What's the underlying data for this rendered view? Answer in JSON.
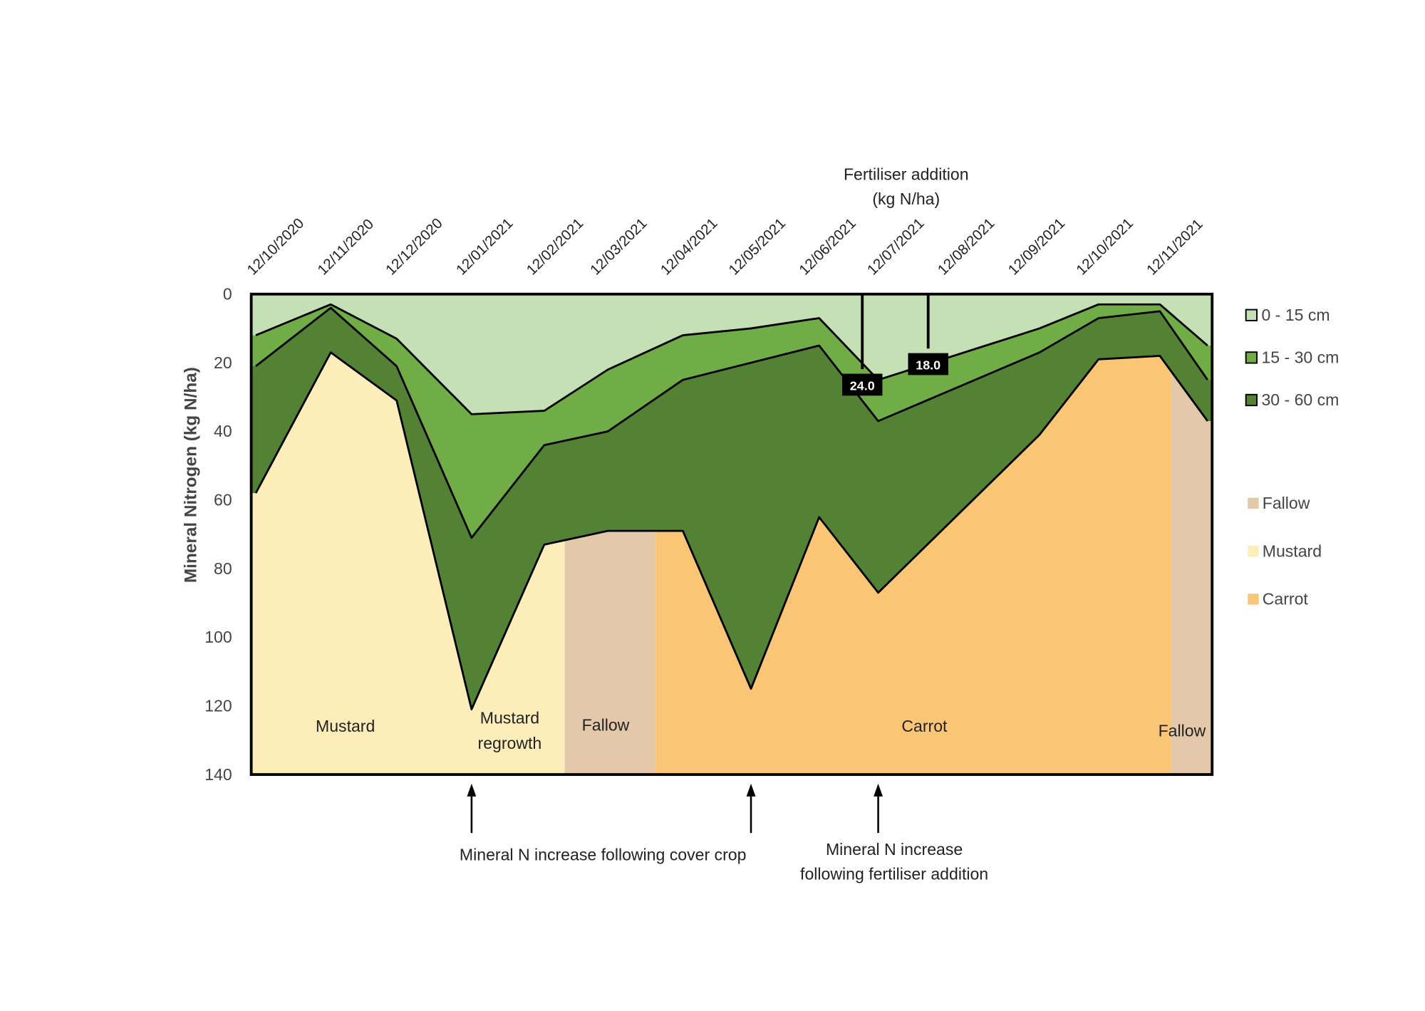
{
  "chart_data": {
    "type": "area",
    "stacked": true,
    "inverted_y": true,
    "title": "",
    "ylabel": "Mineral Nitrogen (kg N/ha)",
    "xlabel": "",
    "ylim": [
      0,
      140
    ],
    "yticks": [
      "0",
      "20",
      "40",
      "60",
      "80",
      "100",
      "120",
      "140"
    ],
    "xticks": [
      "12/10/2020",
      "12/11/2020",
      "12/12/2020",
      "12/01/2021",
      "12/02/2021",
      "12/03/2021",
      "12/04/2021",
      "12/05/2021",
      "12/06/2021",
      "12/07/2021",
      "12/08/2021",
      "12/09/2021",
      "12/10/2021",
      "12/11/2021"
    ],
    "xtick_dates": [
      "2020-10-12",
      "2020-11-12",
      "2020-12-12",
      "2021-01-12",
      "2021-02-12",
      "2021-03-12",
      "2021-04-12",
      "2021-05-12",
      "2021-06-12",
      "2021-07-12",
      "2021-08-12",
      "2021-09-12",
      "2021-10-12",
      "2021-11-12"
    ],
    "xlim": [
      "2020-10-10",
      "2021-12-07"
    ],
    "x": [
      "2020-10-12",
      "2020-11-14",
      "2020-12-13",
      "2021-01-15",
      "2021-02-16",
      "2021-03-16",
      "2021-04-18",
      "2021-05-18",
      "2021-06-17",
      "2021-07-13",
      "2021-09-22",
      "2021-10-18",
      "2021-11-14",
      "2021-12-05"
    ],
    "series": [
      {
        "name": "0 - 15 cm",
        "color": "#c5e0b4",
        "cumulative": [
          12,
          3,
          13,
          35,
          34,
          22,
          12,
          10,
          7,
          25,
          10,
          3,
          3,
          15
        ]
      },
      {
        "name": "15 - 30 cm",
        "color": "#70ad47",
        "cumulative": [
          21,
          4,
          21,
          71,
          44,
          40,
          25,
          20,
          15,
          37,
          17,
          7,
          5,
          25
        ]
      },
      {
        "name": "30 - 60 cm",
        "color": "#548235",
        "cumulative": [
          58,
          17,
          31,
          121,
          73,
          69,
          69,
          115,
          65,
          87,
          41,
          19,
          18,
          37
        ]
      }
    ],
    "crop_periods": [
      {
        "name": "Mustard",
        "label": "Mustard",
        "start": "2020-10-10",
        "end": "2021-02-25",
        "color": "#fdedb9"
      },
      {
        "name": "Fallow",
        "label": "Fallow",
        "start": "2021-02-25",
        "end": "2021-04-06",
        "color": "#e3c9aa"
      },
      {
        "name": "Carrot",
        "label": "Carrot",
        "start": "2021-04-06",
        "end": "2021-11-19",
        "color": "#fbc576"
      },
      {
        "name": "Fallow",
        "label": "Fallow",
        "start": "2021-11-19",
        "end": "2021-12-07",
        "color": "#e3c9aa"
      }
    ],
    "mustard_regrowth_label": [
      "Mustard",
      "regrowth"
    ],
    "fertiliser": {
      "title": [
        "Fertiliser addition",
        "(kg N/ha)"
      ],
      "events": [
        {
          "date": "2021-07-06",
          "value": "24.0",
          "depth": 24
        },
        {
          "date": "2021-08-04",
          "value": "18.0",
          "depth": 18
        }
      ]
    },
    "annotations": [
      {
        "date": "2021-01-15",
        "text": [
          "Mineral N increase following cover crop"
        ]
      },
      {
        "date": "2021-05-18",
        "text": []
      },
      {
        "date": "2021-07-13",
        "text": [
          "Mineral N increase",
          "following fertiliser addition"
        ]
      }
    ],
    "legend": {
      "placement": "right",
      "depth_items": [
        "0 - 15 cm",
        "15 - 30 cm",
        "30 - 60 cm"
      ],
      "crop_items": [
        {
          "label": "Fallow",
          "color": "#e3c9aa"
        },
        {
          "label": "Mustard",
          "color": "#fdedb9"
        },
        {
          "label": "Carrot",
          "color": "#fbc576"
        }
      ]
    }
  }
}
